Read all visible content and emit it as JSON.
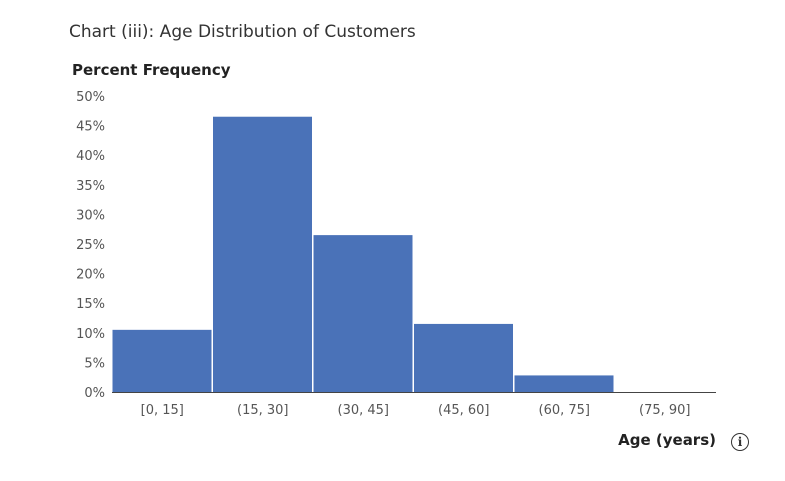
{
  "chart_data": {
    "type": "bar",
    "title": "Chart (iii): Age Distribution of Customers",
    "ylabel": "Percent Frequency",
    "xlabel": "Age (years)",
    "categories": [
      "[0, 15]",
      "(15, 30]",
      "(30, 45]",
      "(45, 60]",
      "(60, 75]",
      "(75, 90]"
    ],
    "values": [
      10.5,
      46.5,
      26.5,
      11.5,
      2.8,
      0
    ],
    "ylim": [
      0,
      50
    ],
    "yticks": [
      0,
      5,
      10,
      15,
      20,
      25,
      30,
      35,
      40,
      45,
      50
    ],
    "ytick_labels": [
      "0%",
      "5%",
      "10%",
      "15%",
      "20%",
      "25%",
      "30%",
      "35%",
      "40%",
      "45%",
      "50%"
    ],
    "bar_color": "#4a72b8",
    "grid": false
  },
  "info_button": {
    "icon": "info-icon",
    "glyph": "i"
  }
}
